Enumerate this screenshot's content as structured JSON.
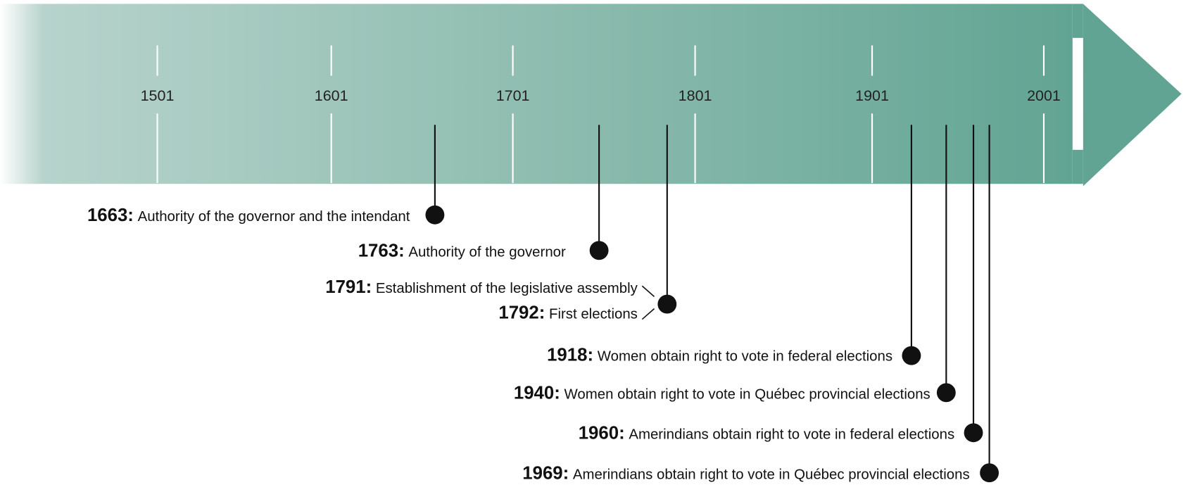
{
  "axis": {
    "ticks": [
      "1501",
      "1601",
      "1701",
      "1801",
      "1901",
      "2001"
    ]
  },
  "events": [
    {
      "year": "1663:",
      "text": "Authority of the governor and the intendant"
    },
    {
      "year": "1763:",
      "text": "Authority of the governor"
    },
    {
      "year": "1791:",
      "text": "Establishment of the legislative assembly"
    },
    {
      "year": "1792:",
      "text": "First elections"
    },
    {
      "year": "1918:",
      "text": "Women obtain right to vote in federal elections"
    },
    {
      "year": "1940:",
      "text": "Women obtain right to vote in Québec provincial elections"
    },
    {
      "year": "1960:",
      "text": "Amerindians obtain right to vote in federal elections"
    },
    {
      "year": "1969:",
      "text": "Amerindians obtain right to vote in Québec provincial elections"
    }
  ]
}
